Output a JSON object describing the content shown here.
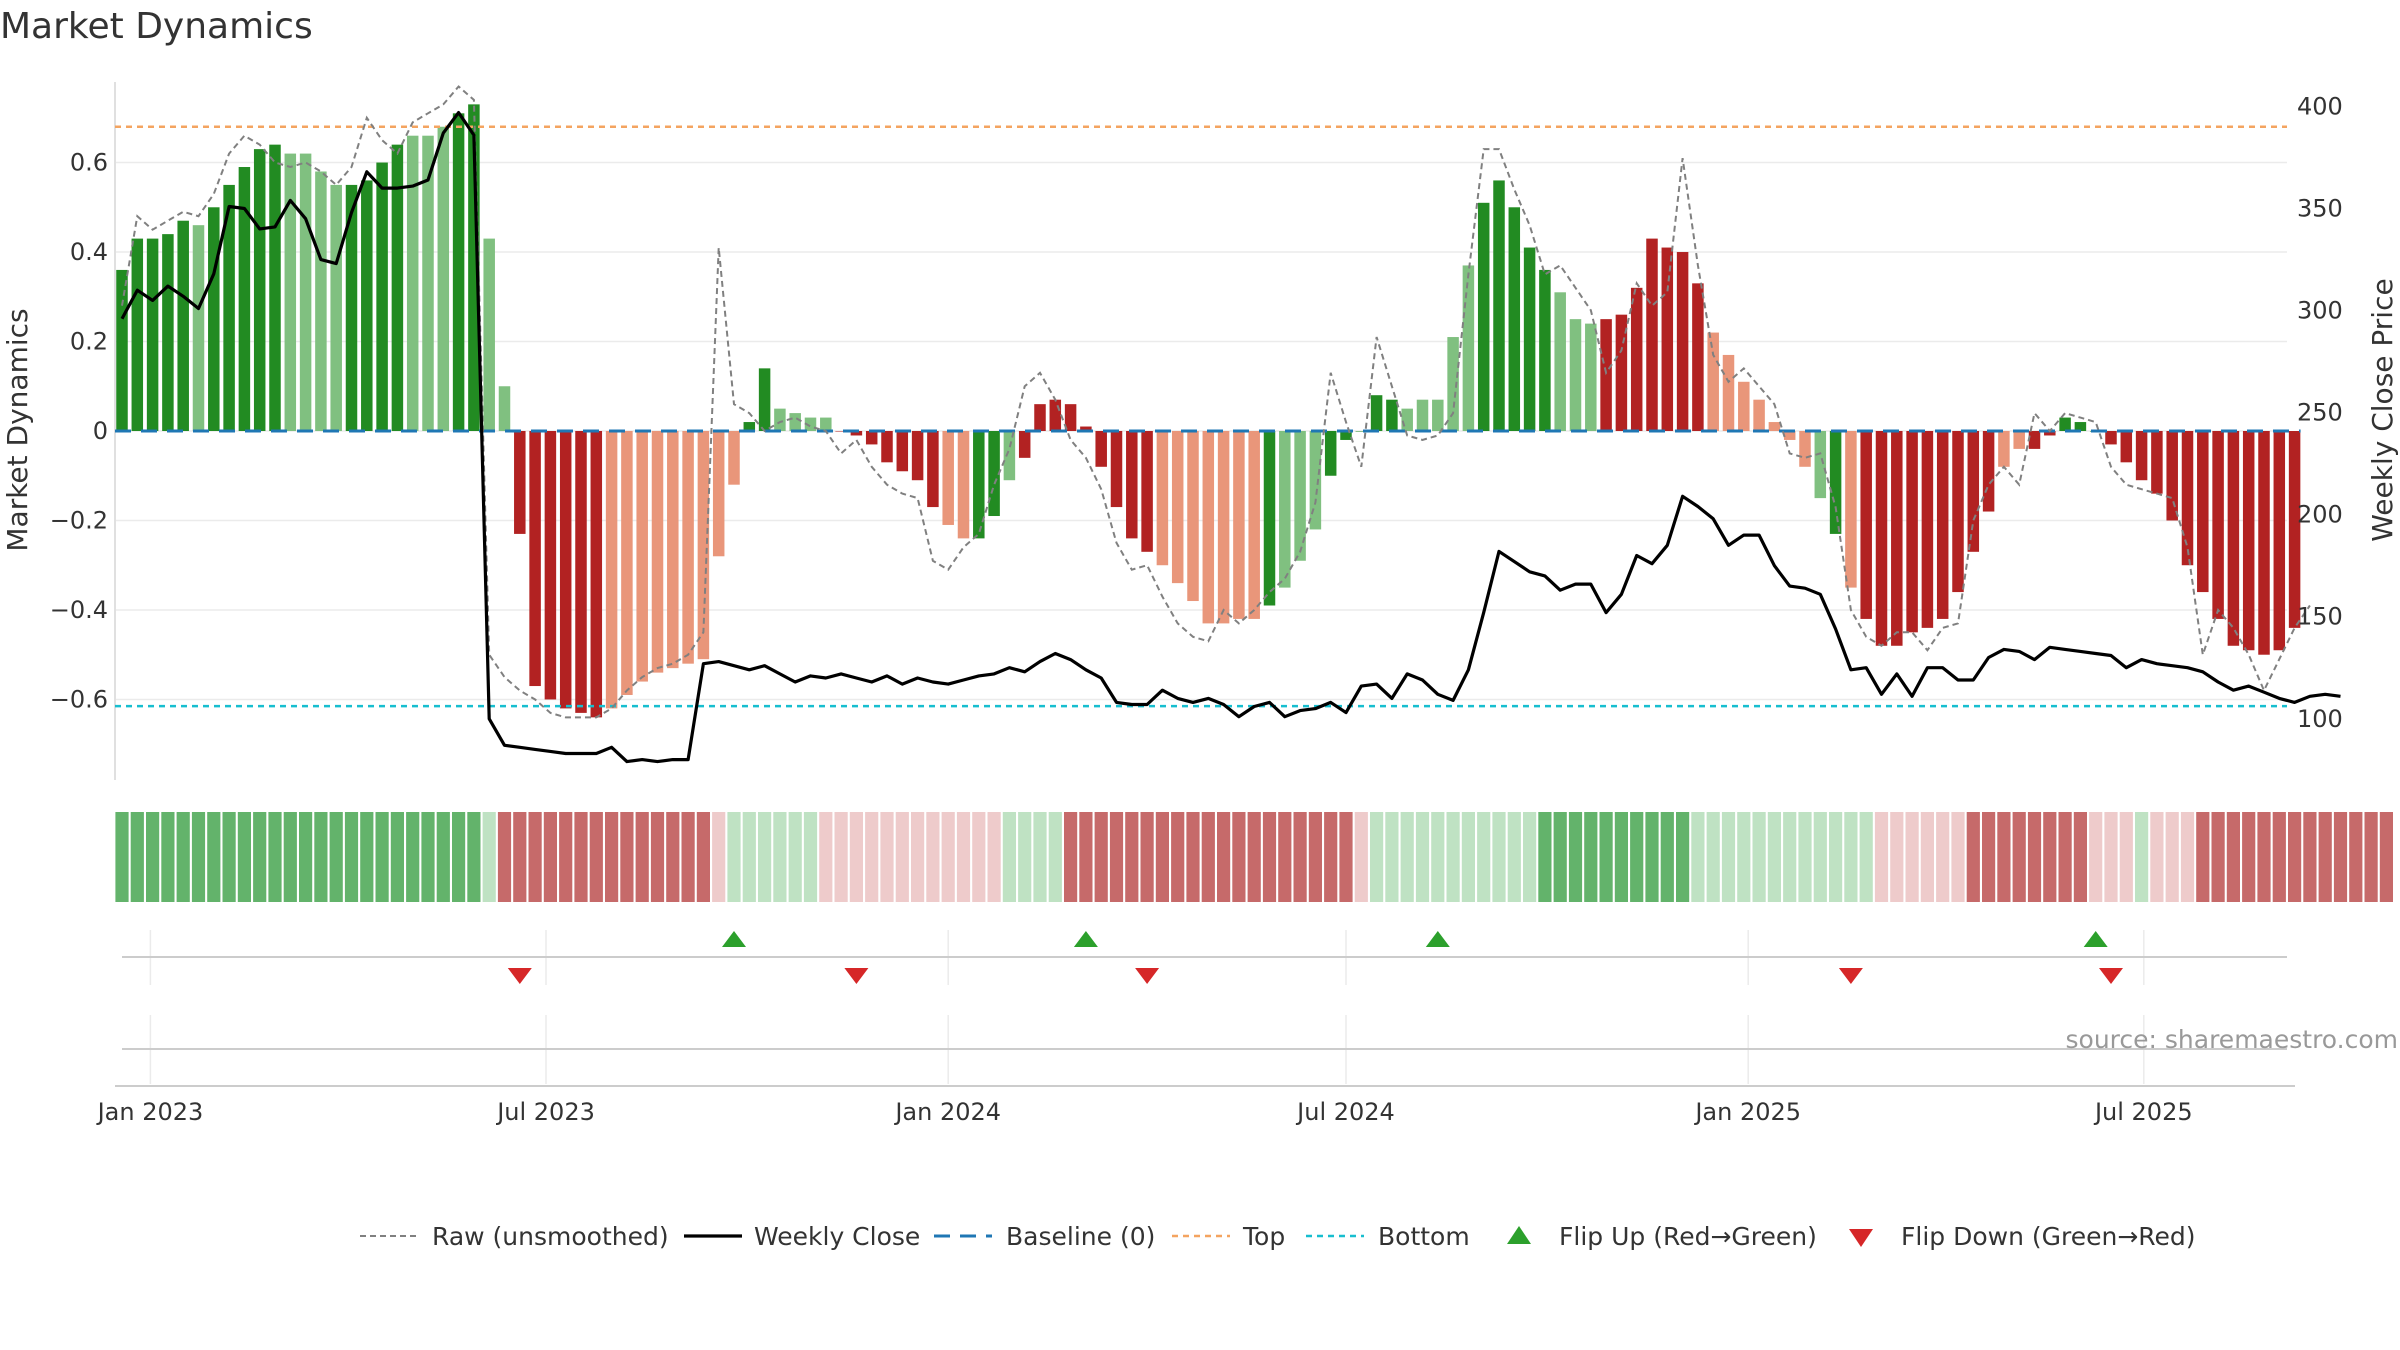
{
  "title": "Market Dynamics",
  "source": "source: sharemaestro.com",
  "colors": {
    "bar_dark_green": "#228B22",
    "bar_light_green": "#80C080",
    "bar_dark_red": "#B22222",
    "bar_light_red": "#E9967A",
    "weekly_close": "#000000",
    "raw": "#808080",
    "baseline": "#1F77B4",
    "top": "#F4A460",
    "bottom": "#17BECF",
    "flip_up": "#2CA02C",
    "flip_down": "#D62728",
    "grid": "#EBEBEB"
  },
  "chart_data": {
    "type": "bar",
    "ylabel": "Market Dynamics",
    "y2label": "Weekly Close Price",
    "ylim": [
      -0.78,
      0.78
    ],
    "y2lim": [
      70,
      412
    ],
    "yticks": [
      0.6,
      0.4,
      0.2,
      0,
      -0.2,
      -0.4,
      -0.6
    ],
    "ytick_labels": [
      "0.6",
      "0.4",
      "0.2",
      "0",
      "−0.2",
      "−0.4",
      "−0.6"
    ],
    "y2ticks": [
      400,
      350,
      300,
      250,
      200,
      150,
      100
    ],
    "y2tick_labels": [
      "400",
      "350",
      "300",
      "250",
      "200",
      "150",
      "100"
    ],
    "x_start": "2022-12-19",
    "x_ticks": [
      {
        "label": "Jan 2023",
        "date": "2023-01-01"
      },
      {
        "label": "Jul 2023",
        "date": "2023-07-01"
      },
      {
        "label": "Jan 2024",
        "date": "2024-01-01"
      },
      {
        "label": "Jul 2024",
        "date": "2024-07-01"
      },
      {
        "label": "Jan 2025",
        "date": "2025-01-01"
      },
      {
        "label": "Jul 2025",
        "date": "2025-07-01"
      }
    ],
    "top_level": 0.68,
    "bottom_level": -0.615,
    "baseline": 0,
    "bar_values": [
      0.36,
      0.43,
      0.43,
      0.44,
      0.47,
      0.46,
      0.5,
      0.55,
      0.59,
      0.63,
      0.64,
      0.62,
      0.62,
      0.58,
      0.55,
      0.55,
      0.56,
      0.6,
      0.64,
      0.66,
      0.66,
      0.68,
      0.71,
      0.73,
      0.43,
      0.1,
      -0.23,
      -0.57,
      -0.6,
      -0.62,
      -0.63,
      -0.64,
      -0.62,
      -0.59,
      -0.56,
      -0.54,
      -0.53,
      -0.52,
      -0.51,
      -0.28,
      -0.12,
      0.02,
      0.14,
      0.05,
      0.04,
      0.03,
      0.03,
      0.0,
      -0.01,
      -0.03,
      -0.07,
      -0.09,
      -0.11,
      -0.17,
      -0.21,
      -0.24,
      -0.24,
      -0.19,
      -0.11,
      -0.06,
      0.06,
      0.07,
      0.06,
      0.01,
      -0.08,
      -0.17,
      -0.24,
      -0.27,
      -0.3,
      -0.34,
      -0.38,
      -0.43,
      -0.43,
      -0.42,
      -0.42,
      -0.39,
      -0.35,
      -0.29,
      -0.22,
      -0.1,
      -0.02,
      0.0,
      0.08,
      0.07,
      0.05,
      0.07,
      0.07,
      0.21,
      0.37,
      0.51,
      0.56,
      0.5,
      0.41,
      0.36,
      0.31,
      0.25,
      0.24,
      0.25,
      0.26,
      0.32,
      0.43,
      0.41,
      0.4,
      0.33,
      0.22,
      0.17,
      0.11,
      0.07,
      0.02,
      -0.02,
      -0.08,
      -0.15,
      -0.23,
      -0.35,
      -0.42,
      -0.48,
      -0.48,
      -0.45,
      -0.44,
      -0.42,
      -0.36,
      -0.27,
      -0.18,
      -0.08,
      -0.04,
      -0.04,
      -0.01,
      0.03,
      0.02,
      0.0,
      -0.03,
      -0.07,
      -0.11,
      -0.14,
      -0.2,
      -0.3,
      -0.36,
      -0.42,
      -0.48,
      -0.49,
      -0.5,
      -0.49,
      -0.44
    ],
    "bar_shades": "GGGGGgGGGGGggggGGGGgggGGgg RRRRRRrrrrrrrrrGGgggg RRRRRRRrrGGg RRRRRRRRRrrrrrrr GgggGGGGGgggggGGGGGggg RRRRRRRrrrrrrr gGrRRRRRRRRRrr",
    "weekly_close": [
      296,
      310,
      305,
      312,
      307,
      301,
      318,
      351,
      350,
      340,
      341,
      354,
      345,
      325,
      323,
      348,
      368,
      360,
      360,
      361,
      364,
      387,
      397,
      386,
      100,
      87,
      86,
      85,
      84,
      83,
      83,
      83,
      86,
      79,
      80,
      79,
      80,
      80,
      127,
      128,
      126,
      124,
      126,
      122,
      118,
      121,
      120,
      122,
      120,
      118,
      121,
      117,
      120,
      118,
      117,
      119,
      121,
      122,
      125,
      123,
      128,
      132,
      129,
      124,
      120,
      108,
      107,
      107,
      114,
      110,
      108,
      110,
      107,
      101,
      106,
      108,
      101,
      104,
      105,
      108,
      103,
      116,
      117,
      110,
      122,
      119,
      112,
      109,
      124,
      152,
      182,
      177,
      172,
      170,
      163,
      166,
      166,
      152,
      161,
      180,
      176,
      185,
      209,
      204,
      198,
      185,
      190,
      190,
      175,
      165,
      164,
      161,
      144,
      124,
      125,
      112,
      122,
      111,
      125,
      125,
      119,
      119,
      130,
      134,
      133,
      129,
      135,
      134,
      133,
      132,
      131,
      125,
      129,
      127,
      126,
      125,
      123,
      118,
      114,
      116,
      113,
      110,
      108,
      111,
      112,
      111
    ],
    "raw_values": [
      0.28,
      0.48,
      0.45,
      0.47,
      0.49,
      0.48,
      0.53,
      0.62,
      0.66,
      0.64,
      0.6,
      0.59,
      0.6,
      0.58,
      0.55,
      0.59,
      0.7,
      0.65,
      0.62,
      0.69,
      0.71,
      0.73,
      0.77,
      0.74,
      -0.5,
      -0.55,
      -0.58,
      -0.6,
      -0.63,
      -0.64,
      -0.64,
      -0.64,
      -0.62,
      -0.58,
      -0.55,
      -0.53,
      -0.52,
      -0.5,
      -0.45,
      0.41,
      0.06,
      0.04,
      0.0,
      0.02,
      0.03,
      0.01,
      0.0,
      -0.05,
      -0.02,
      -0.08,
      -0.12,
      -0.14,
      -0.15,
      -0.29,
      -0.31,
      -0.26,
      -0.23,
      -0.12,
      -0.04,
      0.1,
      0.13,
      0.07,
      -0.02,
      -0.06,
      -0.13,
      -0.25,
      -0.31,
      -0.3,
      -0.37,
      -0.43,
      -0.46,
      -0.47,
      -0.4,
      -0.43,
      -0.4,
      -0.36,
      -0.33,
      -0.27,
      -0.16,
      0.13,
      0.02,
      -0.08,
      0.21,
      0.1,
      -0.01,
      -0.02,
      -0.01,
      0.04,
      0.35,
      0.63,
      0.63,
      0.54,
      0.46,
      0.35,
      0.37,
      0.32,
      0.27,
      0.13,
      0.18,
      0.33,
      0.28,
      0.31,
      0.61,
      0.37,
      0.17,
      0.11,
      0.14,
      0.1,
      0.06,
      -0.05,
      -0.06,
      -0.05,
      -0.17,
      -0.4,
      -0.46,
      -0.48,
      -0.45,
      -0.45,
      -0.49,
      -0.44,
      -0.43,
      -0.2,
      -0.12,
      -0.08,
      -0.12,
      0.04,
      0.0,
      0.04,
      0.03,
      0.02,
      -0.08,
      -0.12,
      -0.13,
      -0.14,
      -0.15,
      -0.26,
      -0.5,
      -0.4,
      -0.44,
      -0.5,
      -0.58,
      -0.51,
      -0.44,
      -0.39
    ],
    "regime_strip": "GGGGGGGGGGGGGGGGGGGGGGGGg RRRRRRRRRRRRRRrgggggg rrrrrrrrrrrrgggg RRRRRRRRRRRRRRRRRRR rgggggggggggGGGGGGGGGGgggggggggggg rrrrrrRRRRRRRRrrr grrrRRRRRRRRRRRRR",
    "flip_up_dates": [
      "2023-09-25",
      "2024-03-04",
      "2024-08-12",
      "2025-06-09"
    ],
    "flip_down_dates": [
      "2023-06-19",
      "2023-11-20",
      "2024-04-01",
      "2025-02-17",
      "2025-06-16"
    ],
    "legend": {
      "raw": "Raw (unsmoothed)",
      "close": "Weekly Close",
      "baseline": "Baseline (0)",
      "top": "Top",
      "bottom": "Bottom",
      "flip_up": "Flip Up (Red→Green)",
      "flip_down": "Flip Down (Green→Red)"
    }
  }
}
